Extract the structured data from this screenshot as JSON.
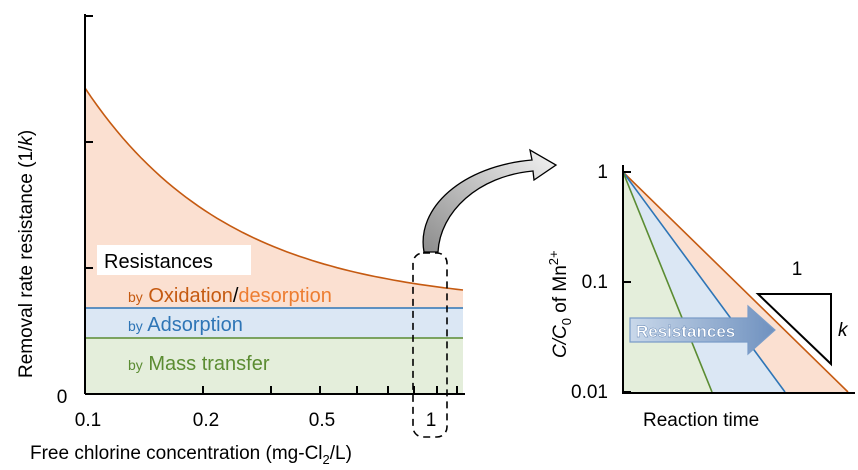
{
  "left_chart": {
    "ylabel_pre": "Removal rate resistance (1/",
    "ylabel_k": "k",
    "ylabel_post": ")",
    "xlabel_pre": "Free chlorine concentration (mg-Cl",
    "xlabel_sub": "2",
    "xlabel_post": "/L)",
    "y_zero": "0",
    "x_ticks": [
      "0.1",
      "0.2",
      "0.5",
      "1"
    ],
    "legend_title": "Resistances",
    "bands": [
      {
        "prefix": "by",
        "label": "Mass transfer",
        "color": "#5b8c32",
        "fill": "#e4eedb"
      },
      {
        "prefix": "by",
        "label": "Adsorption",
        "color": "#2e75b6",
        "fill": "#dbe7f4"
      },
      {
        "prefix": "by",
        "label_a": "Oxidation",
        "sep": "/",
        "label_b": "desorption",
        "color": "#c55a11",
        "color_b": "#ed7d31",
        "fill": "#fbe0d1"
      }
    ]
  },
  "right_chart": {
    "ylabel_pre": "C/C",
    "ylabel_sub": "0",
    "ylabel_mid": " of Mn",
    "ylabel_sup": "2+",
    "xlabel": "Reaction time",
    "y_ticks": [
      "1",
      "0.1",
      "0.01"
    ],
    "arrow_label": "Resistances",
    "slope_top": "1",
    "slope_side": "k"
  },
  "colors": {
    "orange_line": "#c55a11",
    "blue_line": "#2e75b6",
    "green_line": "#5b8c32",
    "orange_fill": "#fbe0d1",
    "blue_fill": "#dbe7f4",
    "green_fill": "#e4eedb",
    "arrow_fill": "#7f9fc6"
  }
}
